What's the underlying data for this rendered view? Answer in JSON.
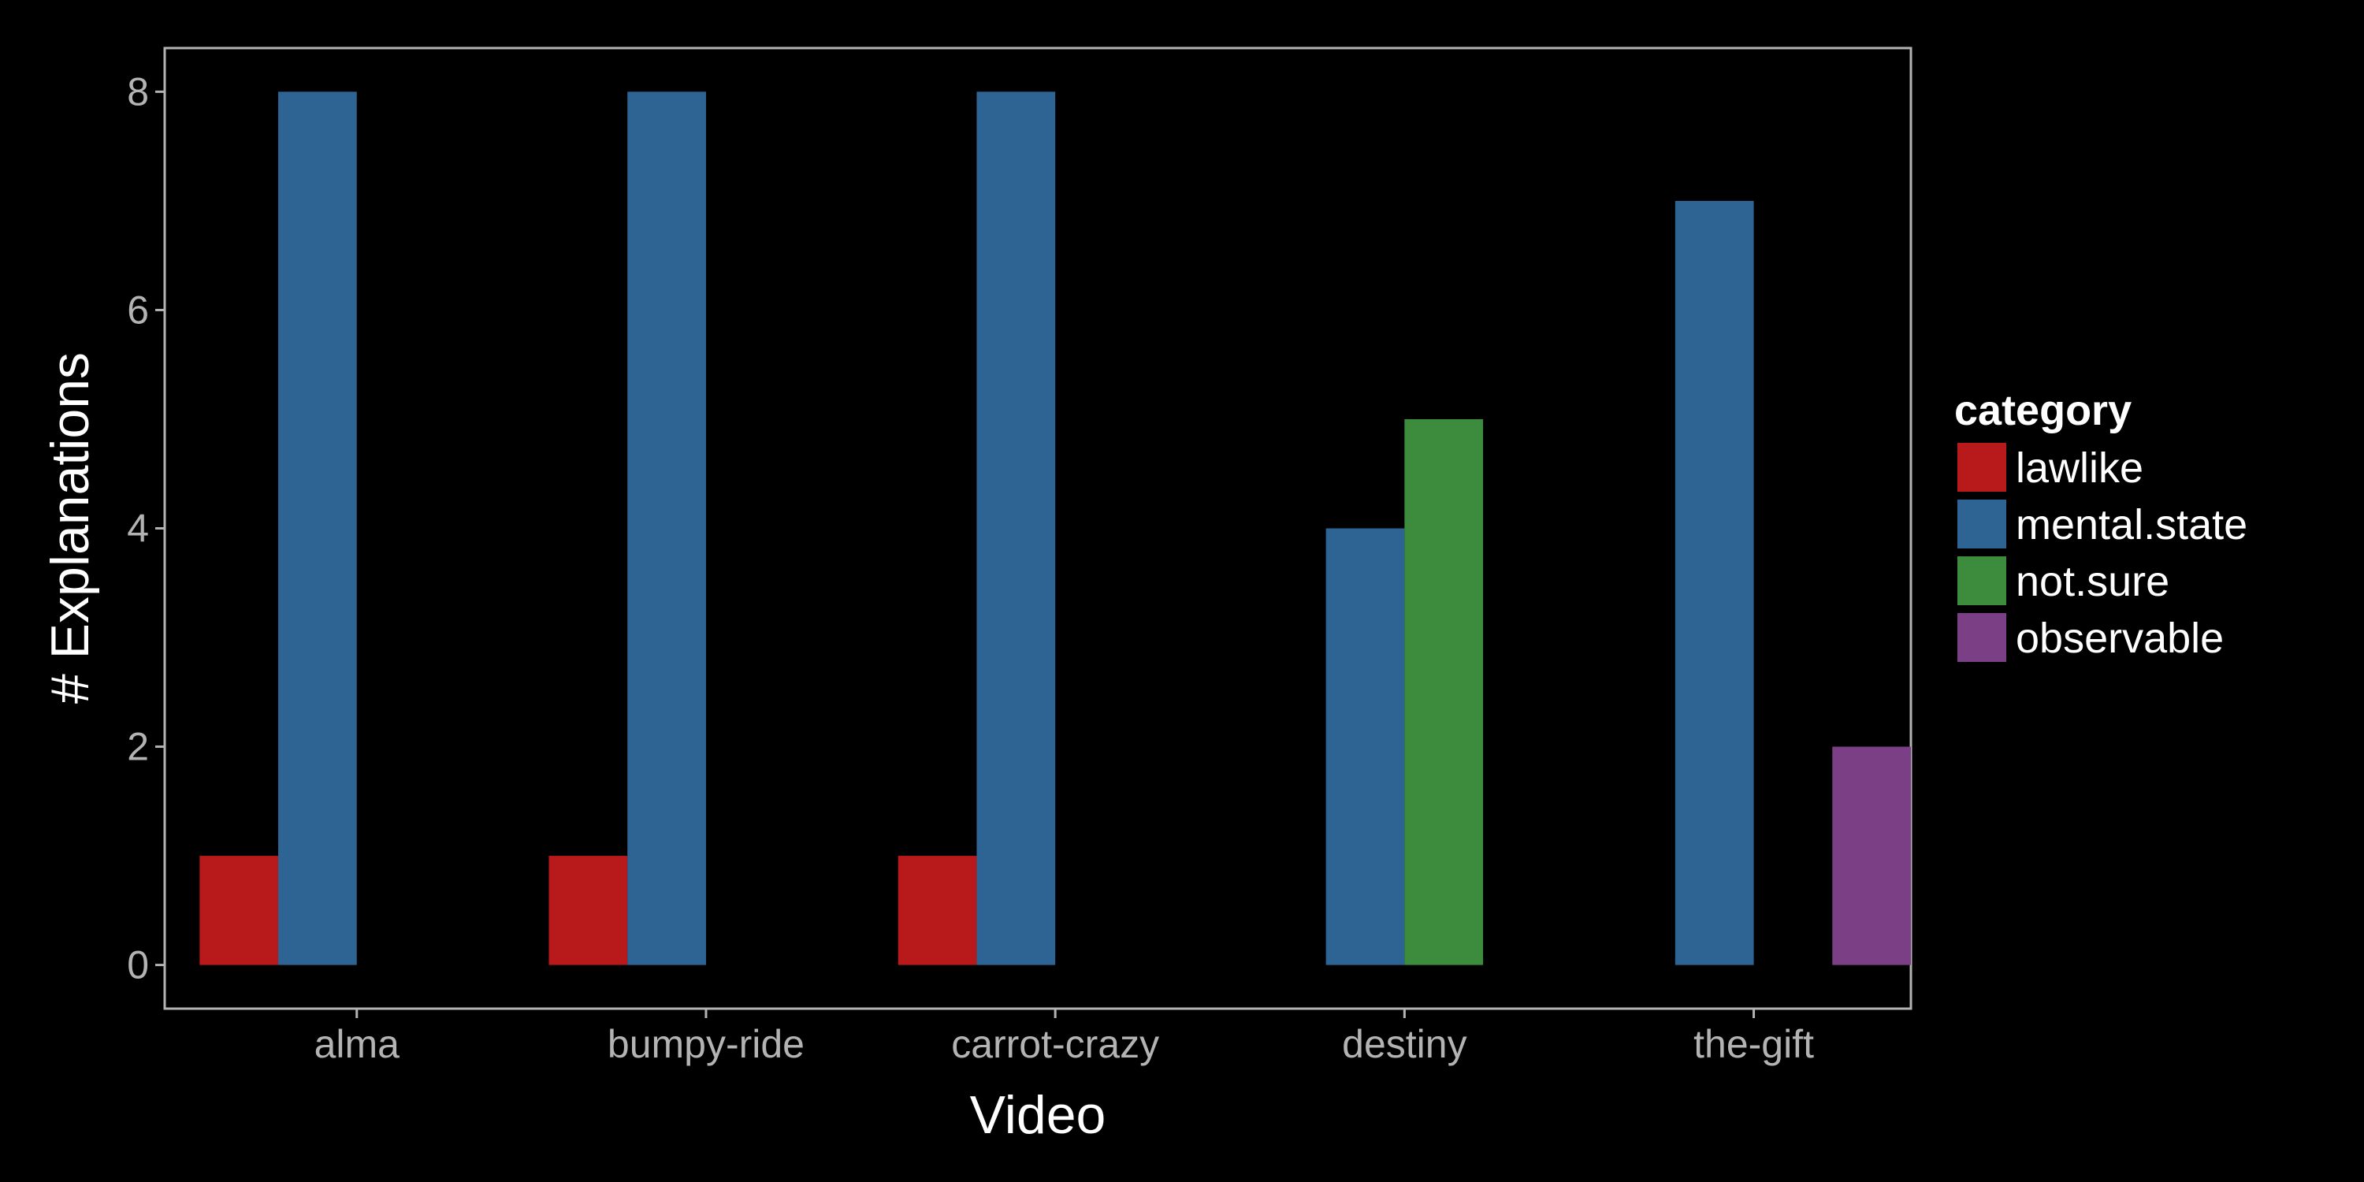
{
  "chart_data": {
    "type": "bar",
    "categories": [
      "alma",
      "bumpy-ride",
      "carrot-crazy",
      "destiny",
      "the-gift"
    ],
    "series": [
      {
        "name": "lawlike",
        "color": "#b8191b",
        "values": [
          1,
          1,
          1,
          null,
          null
        ]
      },
      {
        "name": "mental.state",
        "color": "#2e6494",
        "values": [
          8,
          8,
          8,
          4,
          7
        ]
      },
      {
        "name": "not.sure",
        "color": "#3d8c3e",
        "values": [
          null,
          null,
          null,
          5,
          null
        ]
      },
      {
        "name": "observable",
        "color": "#7b3f85",
        "values": [
          null,
          null,
          null,
          null,
          2
        ]
      }
    ],
    "xlabel": "Video",
    "ylabel": "# Explanations",
    "ylim": [
      -0.4,
      8.4
    ],
    "yticks": [
      0,
      2,
      4,
      6,
      8
    ],
    "legend_title": "category",
    "legend_position": "right",
    "grid": false,
    "background": "#000000",
    "frame_color": "#b3b3b3"
  }
}
